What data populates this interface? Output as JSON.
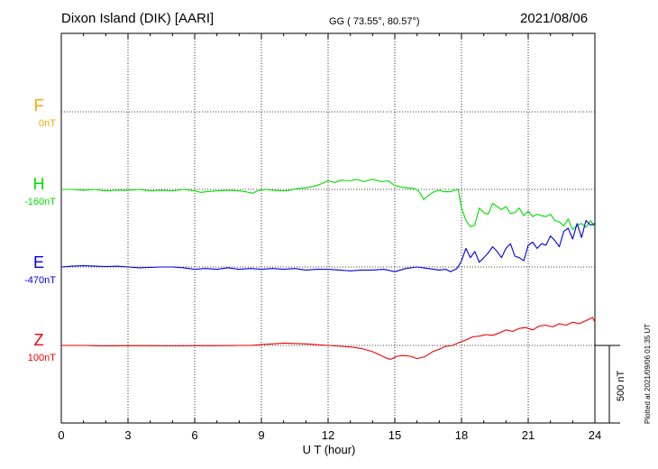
{
  "header": {
    "station": "Dixon Island (DIK)  [AARI]",
    "coords": "GG ( 73.55°,  80.57°)",
    "date": "2021/08/06"
  },
  "components": [
    {
      "key": "F",
      "label": "F",
      "baseline": "0nT",
      "color": "#f5a800"
    },
    {
      "key": "H",
      "label": "H",
      "baseline": "-160nT",
      "color": "#00dd00"
    },
    {
      "key": "E",
      "label": "E",
      "baseline": "-470nT",
      "color": "#0000dd"
    },
    {
      "key": "Z",
      "label": "Z",
      "baseline": "100nT",
      "color": "#ee0000"
    }
  ],
  "footer": {
    "xlabel": "U T (hour)",
    "plotted": "Plotted at 2021/09/06 01:35 UT",
    "scale_label": "500 nT"
  },
  "chart_data": {
    "type": "line",
    "xlabel": "U T (hour)",
    "xlim": [
      0,
      24
    ],
    "xticks": [
      0,
      3,
      6,
      9,
      12,
      15,
      18,
      21,
      24
    ],
    "grid": true,
    "units": "nT",
    "series": [
      {
        "name": "F",
        "color": "#f5a800",
        "x": [],
        "y": []
      },
      {
        "name": "H",
        "color": "#00dd00",
        "x": [
          0,
          0.5,
          1,
          1.5,
          2,
          2.5,
          3,
          3.5,
          4,
          4.5,
          5,
          5.5,
          6,
          6.3,
          6.5,
          7,
          7.5,
          8,
          8.3,
          8.6,
          8.9,
          9.2,
          9.5,
          10,
          10.3,
          10.6,
          11,
          11.5,
          12,
          12.3,
          12.6,
          13,
          13.3,
          13.6,
          14,
          14.4,
          14.7,
          15,
          15.3,
          15.6,
          15.9,
          16.1,
          16.3,
          16.5,
          16.7,
          17,
          17.2,
          17.5,
          17.7,
          17.85,
          18,
          18.2,
          18.4,
          18.6,
          18.8,
          19,
          19.2,
          19.4,
          19.6,
          19.8,
          20,
          20.2,
          20.4,
          20.6,
          20.8,
          21,
          21.2,
          21.4,
          21.6,
          21.8,
          22,
          22.2,
          22.4,
          22.6,
          22.8,
          23,
          23.2,
          23.4,
          23.6,
          23.8,
          24
        ],
        "y": [
          0,
          0,
          -5,
          0,
          -10,
          -5,
          -5,
          0,
          -10,
          -5,
          -10,
          0,
          -10,
          -20,
          -15,
          -10,
          -5,
          -10,
          -15,
          -25,
          -5,
          0,
          -5,
          -10,
          -5,
          5,
          10,
          25,
          55,
          45,
          60,
          55,
          65,
          50,
          65,
          50,
          55,
          25,
          15,
          10,
          5,
          -15,
          -65,
          -40,
          -20,
          -5,
          -15,
          -15,
          -5,
          0,
          -120,
          -200,
          -240,
          -230,
          -120,
          -150,
          -160,
          -90,
          -110,
          -130,
          -110,
          -155,
          -150,
          -120,
          -170,
          -140,
          -175,
          -160,
          -170,
          -175,
          -160,
          -200,
          -210,
          -235,
          -190,
          -260,
          -230,
          -220,
          -245,
          -200,
          -245
        ]
      },
      {
        "name": "E",
        "color": "#0000dd",
        "x": [
          0,
          0.5,
          1,
          1.5,
          2,
          2.5,
          3,
          3.5,
          4,
          4.5,
          5,
          5.5,
          6,
          6.5,
          7,
          7.5,
          8,
          8.5,
          9,
          9.5,
          10,
          10.5,
          11,
          11.5,
          12,
          12.5,
          13,
          13.5,
          14,
          14.5,
          15,
          15.5,
          16,
          16.5,
          17,
          17.3,
          17.5,
          17.8,
          18,
          18.2,
          18.4,
          18.6,
          18.8,
          19,
          19.2,
          19.4,
          19.6,
          19.8,
          20,
          20.2,
          20.4,
          20.6,
          20.8,
          21,
          21.2,
          21.4,
          21.6,
          21.8,
          22,
          22.2,
          22.4,
          22.6,
          22.8,
          23,
          23.2,
          23.4,
          23.6,
          23.8,
          24
        ],
        "y": [
          0,
          5,
          8,
          5,
          3,
          5,
          0,
          -5,
          -3,
          0,
          0,
          -5,
          -15,
          -10,
          -15,
          -5,
          -15,
          -10,
          -15,
          -10,
          -15,
          -10,
          -20,
          -15,
          -15,
          -20,
          -25,
          -20,
          -20,
          -15,
          -30,
          -10,
          0,
          -10,
          -20,
          -15,
          -30,
          -10,
          40,
          120,
          60,
          100,
          30,
          60,
          90,
          130,
          100,
          60,
          120,
          150,
          70,
          60,
          40,
          140,
          160,
          120,
          150,
          140,
          200,
          170,
          130,
          230,
          250,
          180,
          280,
          190,
          300,
          270,
          280
        ]
      },
      {
        "name": "Z",
        "color": "#ee0000",
        "x": [
          0,
          0.5,
          1,
          1.5,
          2,
          3,
          4,
          5,
          6,
          7,
          8,
          8.5,
          9,
          9.5,
          10,
          11,
          12,
          13,
          13.5,
          14,
          14.3,
          14.6,
          14.8,
          15.1,
          15.4,
          15.7,
          16,
          16.3,
          16.5,
          16.7,
          17,
          17.3,
          17.6,
          17.9,
          18.2,
          18.5,
          18.8,
          19.1,
          19.4,
          19.7,
          20,
          20.3,
          20.6,
          20.9,
          21.2,
          21.5,
          21.8,
          22.1,
          22.4,
          22.7,
          23,
          23.3,
          23.6,
          23.9,
          24
        ],
        "y": [
          0,
          0,
          0,
          -2,
          -3,
          -2,
          -2,
          -3,
          -2,
          -2,
          0,
          0,
          5,
          10,
          15,
          10,
          0,
          -10,
          -20,
          -40,
          -60,
          -80,
          -90,
          -70,
          -65,
          -70,
          -85,
          -75,
          -60,
          -40,
          -25,
          -5,
          0,
          20,
          35,
          55,
          60,
          70,
          65,
          80,
          100,
          90,
          110,
          115,
          100,
          125,
          130,
          120,
          140,
          130,
          150,
          140,
          160,
          180,
          150
        ]
      }
    ]
  }
}
